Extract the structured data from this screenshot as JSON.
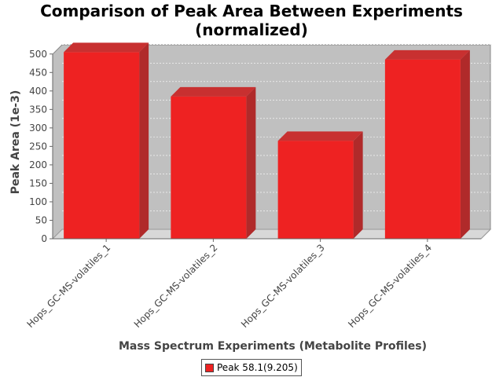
{
  "chart_data": {
    "type": "bar",
    "title": "Comparison of Peak Area Between Experiments\n(normalized)",
    "xlabel": "Mass Spectrum Experiments (Metabolite Profiles)",
    "ylabel": "Peak Area (1e-3)",
    "categories": [
      "Hops_GC-MS-volatiles_1",
      "Hops_GC-MS-volatiles_2",
      "Hops_GC-MS-volatiles_3",
      "Hops_GC-MS-volatiles_4"
    ],
    "series": [
      {
        "name": "Peak 58.1(9.205)",
        "values": [
          505,
          385,
          265,
          485
        ],
        "color": "#ee2222"
      }
    ],
    "ylim": [
      0,
      525
    ],
    "yticks": [
      0,
      50,
      100,
      150,
      200,
      250,
      300,
      350,
      400,
      450,
      500
    ],
    "grid": true,
    "legend_position": "bottom",
    "plot_background": "#c0c0c0"
  }
}
